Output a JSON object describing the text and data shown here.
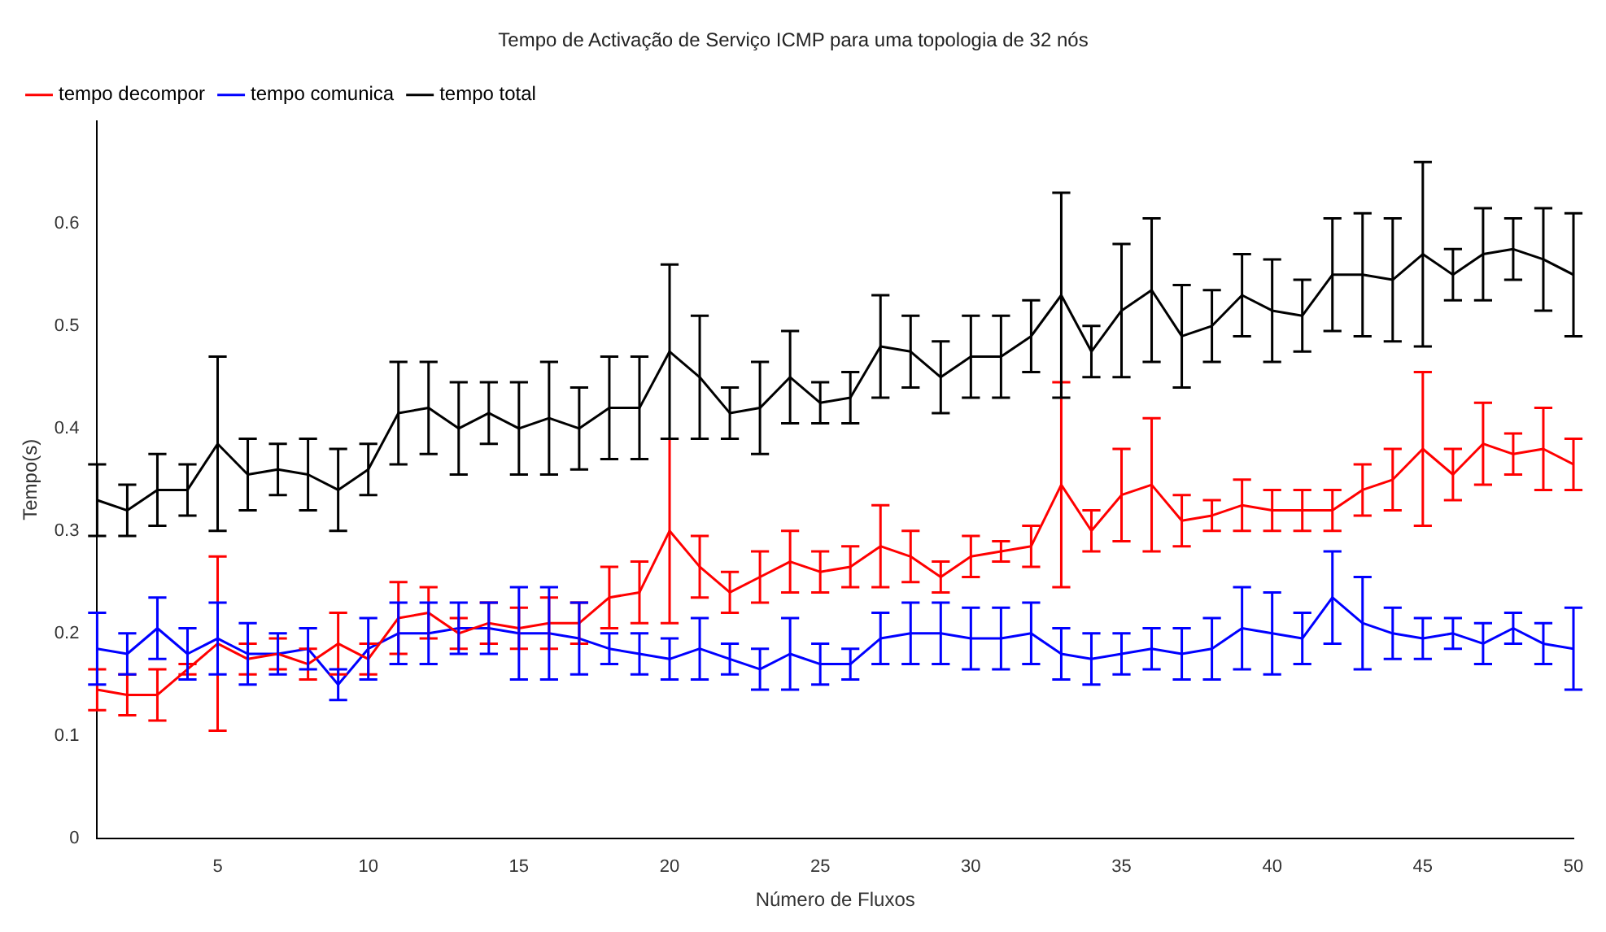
{
  "chart_data": {
    "type": "line",
    "title": "Tempo de Activação de Serviço ICMP para uma topologia de 32 nós",
    "xlabel": "Número de Fluxos",
    "ylabel": "Tempo(s)",
    "x": [
      1,
      2,
      3,
      4,
      5,
      6,
      7,
      8,
      9,
      10,
      11,
      12,
      13,
      14,
      15,
      16,
      17,
      18,
      19,
      20,
      21,
      22,
      23,
      24,
      25,
      26,
      27,
      28,
      29,
      30,
      31,
      32,
      33,
      34,
      35,
      36,
      37,
      38,
      39,
      40,
      41,
      42,
      43,
      44,
      45,
      46,
      47,
      48,
      49,
      50
    ],
    "series": [
      {
        "name": "tempo decompor",
        "color": "#ff0000",
        "values": [
          0.145,
          0.14,
          0.14,
          0.165,
          0.19,
          0.175,
          0.18,
          0.17,
          0.19,
          0.175,
          0.215,
          0.22,
          0.2,
          0.21,
          0.205,
          0.21,
          0.21,
          0.235,
          0.24,
          0.3,
          0.265,
          0.24,
          0.255,
          0.27,
          0.26,
          0.265,
          0.285,
          0.275,
          0.255,
          0.275,
          0.28,
          0.285,
          0.345,
          0.3,
          0.335,
          0.345,
          0.31,
          0.315,
          0.325,
          0.32,
          0.32,
          0.32,
          0.34,
          0.35,
          0.38,
          0.355,
          0.385,
          0.375,
          0.38,
          0.365
        ],
        "errors": [
          0.02,
          0.02,
          0.025,
          0.005,
          0.085,
          0.015,
          0.015,
          0.015,
          0.03,
          0.015,
          0.035,
          0.025,
          0.015,
          0.02,
          0.02,
          0.025,
          0.02,
          0.03,
          0.03,
          0.09,
          0.03,
          0.02,
          0.025,
          0.03,
          0.02,
          0.02,
          0.04,
          0.025,
          0.015,
          0.02,
          0.01,
          0.02,
          0.1,
          0.02,
          0.045,
          0.065,
          0.025,
          0.015,
          0.025,
          0.02,
          0.02,
          0.02,
          0.025,
          0.03,
          0.075,
          0.025,
          0.04,
          0.02,
          0.04,
          0.025
        ]
      },
      {
        "name": "tempo comunica",
        "color": "#0000ff",
        "values": [
          0.185,
          0.18,
          0.205,
          0.18,
          0.195,
          0.18,
          0.18,
          0.185,
          0.15,
          0.185,
          0.2,
          0.2,
          0.205,
          0.205,
          0.2,
          0.2,
          0.195,
          0.185,
          0.18,
          0.175,
          0.185,
          0.175,
          0.165,
          0.18,
          0.17,
          0.17,
          0.195,
          0.2,
          0.2,
          0.195,
          0.195,
          0.2,
          0.18,
          0.175,
          0.18,
          0.185,
          0.18,
          0.185,
          0.205,
          0.2,
          0.195,
          0.235,
          0.21,
          0.2,
          0.195,
          0.2,
          0.19,
          0.205,
          0.19,
          0.185
        ],
        "errors": [
          0.035,
          0.02,
          0.03,
          0.025,
          0.035,
          0.03,
          0.02,
          0.02,
          0.015,
          0.03,
          0.03,
          0.03,
          0.025,
          0.025,
          0.045,
          0.045,
          0.035,
          0.015,
          0.02,
          0.02,
          0.03,
          0.015,
          0.02,
          0.035,
          0.02,
          0.015,
          0.025,
          0.03,
          0.03,
          0.03,
          0.03,
          0.03,
          0.025,
          0.025,
          0.02,
          0.02,
          0.025,
          0.03,
          0.04,
          0.04,
          0.025,
          0.045,
          0.045,
          0.025,
          0.02,
          0.015,
          0.02,
          0.015,
          0.02,
          0.04
        ]
      },
      {
        "name": "tempo total",
        "color": "#000000",
        "values": [
          0.33,
          0.32,
          0.34,
          0.34,
          0.385,
          0.355,
          0.36,
          0.355,
          0.34,
          0.36,
          0.415,
          0.42,
          0.4,
          0.415,
          0.4,
          0.41,
          0.4,
          0.42,
          0.42,
          0.475,
          0.45,
          0.415,
          0.42,
          0.45,
          0.425,
          0.43,
          0.48,
          0.475,
          0.45,
          0.47,
          0.47,
          0.49,
          0.53,
          0.475,
          0.515,
          0.535,
          0.49,
          0.5,
          0.53,
          0.515,
          0.51,
          0.55,
          0.55,
          0.545,
          0.57,
          0.55,
          0.57,
          0.575,
          0.565,
          0.55
        ],
        "errors": [
          0.035,
          0.025,
          0.035,
          0.025,
          0.085,
          0.035,
          0.025,
          0.035,
          0.04,
          0.025,
          0.05,
          0.045,
          0.045,
          0.03,
          0.045,
          0.055,
          0.04,
          0.05,
          0.05,
          0.085,
          0.06,
          0.025,
          0.045,
          0.045,
          0.02,
          0.025,
          0.05,
          0.035,
          0.035,
          0.04,
          0.04,
          0.035,
          0.1,
          0.025,
          0.065,
          0.07,
          0.05,
          0.035,
          0.04,
          0.05,
          0.035,
          0.055,
          0.06,
          0.06,
          0.09,
          0.025,
          0.045,
          0.03,
          0.05,
          0.06
        ]
      }
    ],
    "xlim": [
      1,
      50
    ],
    "xticks": [
      5,
      10,
      15,
      20,
      25,
      30,
      35,
      40,
      45,
      50
    ],
    "ylim": [
      0,
      0.7
    ],
    "yticks": [
      0,
      0.1,
      0.2,
      0.3,
      0.4,
      0.5,
      0.6
    ],
    "grid": false,
    "legend": "top left",
    "marker": "none",
    "line_style": "solid"
  }
}
